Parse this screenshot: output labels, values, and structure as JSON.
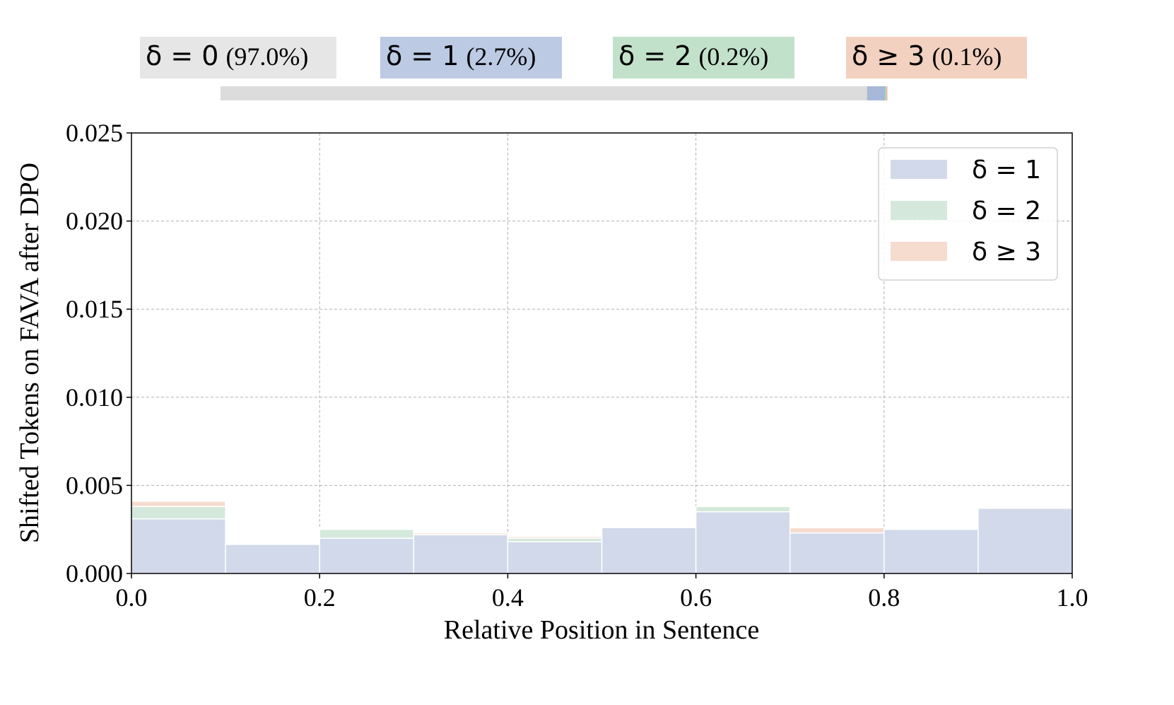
{
  "chart_data": {
    "type": "bar",
    "stacked": true,
    "histogram": true,
    "bin_edges": [
      0.0,
      0.1,
      0.2,
      0.3,
      0.4,
      0.5,
      0.6,
      0.7,
      0.8,
      0.9,
      1.0
    ],
    "series": [
      {
        "name": "δ = 1",
        "color": "#d1d9ea",
        "values": [
          0.0031,
          0.00165,
          0.002,
          0.0022,
          0.0018,
          0.0026,
          0.0035,
          0.0023,
          0.0025,
          0.0037
        ]
      },
      {
        "name": "δ = 2",
        "color": "#d4e9dc",
        "values": [
          0.0007,
          0.0,
          0.0005,
          0.0,
          0.0002,
          0.0,
          0.0003,
          0.0,
          0.0,
          0.0
        ]
      },
      {
        "name": "δ ≥ 3",
        "color": "#f5dccf",
        "values": [
          0.0003,
          0.0,
          0.0,
          0.0001,
          0.0001,
          0.0,
          0.0,
          0.0003,
          0.0,
          5e-05
        ]
      }
    ],
    "xlabel": "Relative Position in Sentence",
    "ylabel": "Shifted Tokens on FAVA after DPO",
    "xlim": [
      0.0,
      1.0
    ],
    "ylim": [
      0.0,
      0.025
    ],
    "xticks": [
      "0.0",
      "0.2",
      "0.4",
      "0.6",
      "0.8",
      "1.0"
    ],
    "yticks": [
      "0.000",
      "0.005",
      "0.010",
      "0.015",
      "0.020",
      "0.025"
    ],
    "grid": true,
    "legend_position": "top-right",
    "legend": [
      "δ = 1",
      "δ = 2",
      "δ ≥ 3"
    ],
    "proportion_bar": {
      "categories": [
        {
          "label": "δ = 0",
          "percent_text": "(97.0%)",
          "percent": 97.0,
          "bar_color": "#dcdcdc",
          "label_bg": "#e6e6e6"
        },
        {
          "label": "δ = 1",
          "percent_text": "(2.7%)",
          "percent": 2.7,
          "bar_color": "#a7b8d8",
          "label_bg": "#bccae4"
        },
        {
          "label": "δ = 2",
          "percent_text": "(0.2%)",
          "percent": 0.2,
          "bar_color": "#a9d3b6",
          "label_bg": "#c2e1ca"
        },
        {
          "label": "δ ≥ 3",
          "percent_text": "(0.1%)",
          "percent": 0.1,
          "bar_color": "#f0b898",
          "label_bg": "#f2d1c0"
        }
      ]
    }
  }
}
